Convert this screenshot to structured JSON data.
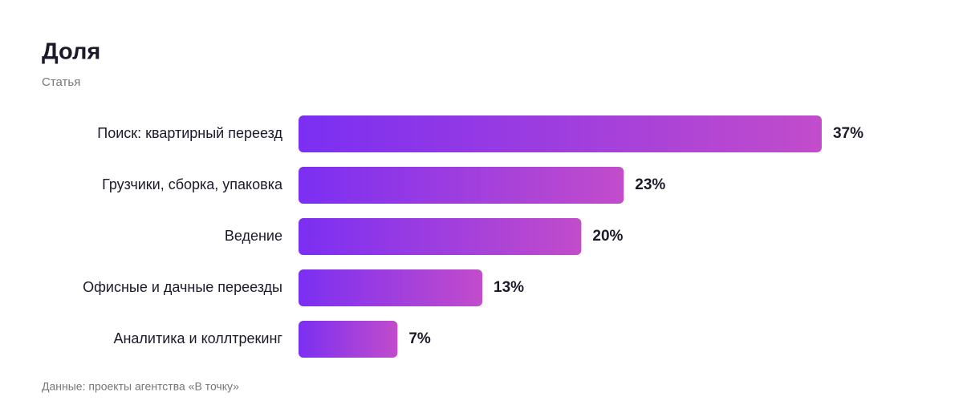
{
  "chart_data": {
    "type": "bar",
    "orientation": "horizontal",
    "title": "Доля",
    "subtitle": "Статья",
    "categories": [
      "Поиск: квартирный переезд",
      "Грузчики, сборка, упаковка",
      "Ведение",
      "Офисные и дачные переезды",
      "Аналитика и коллтрекинг"
    ],
    "values": [
      37,
      23,
      20,
      13,
      7
    ],
    "value_labels": [
      "37%",
      "23%",
      "20%",
      "13%",
      "7%"
    ],
    "gradient": [
      "#7b2ff2",
      "#c24ccb"
    ],
    "source": "Данные: проекты агентства «В точку»"
  }
}
